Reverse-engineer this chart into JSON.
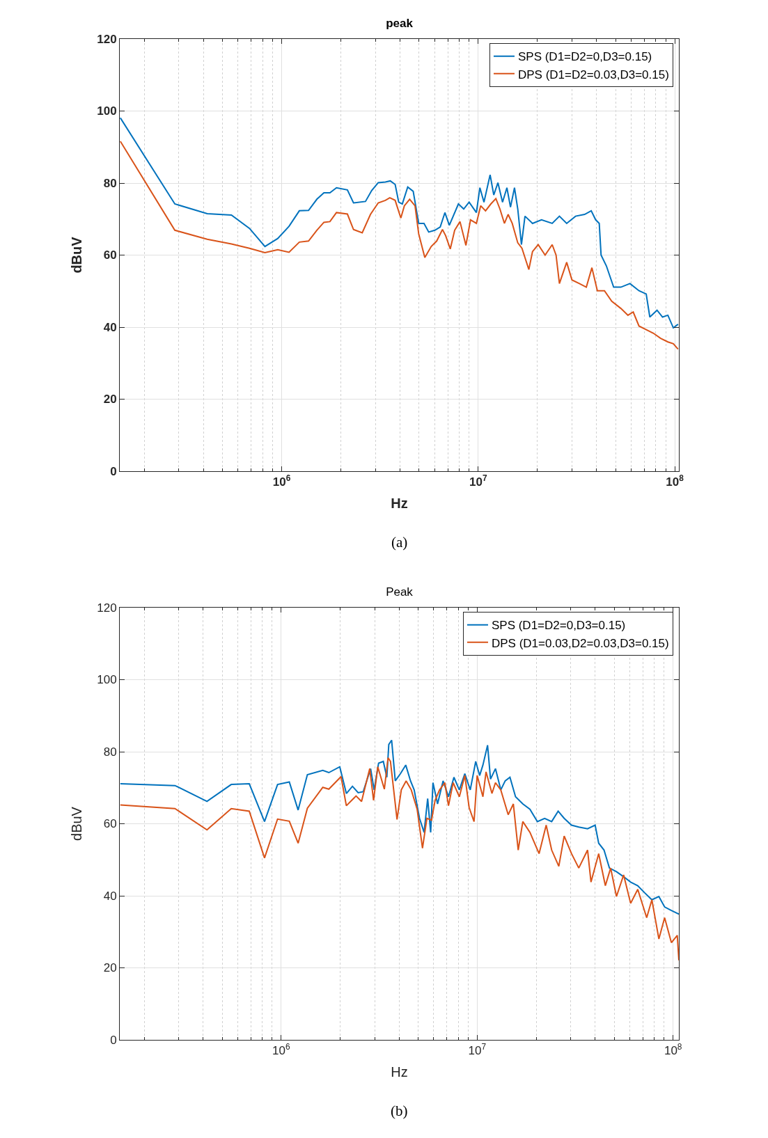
{
  "chart_data": [
    {
      "type": "line",
      "title": "peak",
      "xlabel": "Hz",
      "ylabel": "dBuV",
      "annotations": [
        "(a)"
      ],
      "log": "x",
      "grid": true,
      "legend": "top right",
      "xlim": [
        150000,
        105000000
      ],
      "xticks": [
        {
          "value": 1000000,
          "label": "10$^{6}$"
        },
        {
          "value": 10000000,
          "label": "10$^{7}$"
        },
        {
          "value": 100000000,
          "label": "10$^{8}$"
        }
      ],
      "ylim": [
        0,
        120
      ],
      "yticks": [
        0,
        20,
        40,
        60,
        80,
        100,
        120
      ],
      "series": [
        {
          "name": "SPS (D1=D2=0,D3=0.15)",
          "color": "#0072bd",
          "x": [
            151000,
            286000,
            418000,
            555000,
            686000,
            822000,
            955000,
            1090000,
            1230000,
            1370000,
            1510000,
            1640000,
            1760000,
            1900000,
            2160000,
            2320000,
            2670000,
            2870000,
            3100000,
            3370000,
            3570000,
            3780000,
            3940000,
            4110000,
            4380000,
            4670000,
            4980000,
            5300000,
            5600000,
            6020000,
            6410000,
            6770000,
            7130000,
            7930000,
            8440000,
            8990000,
            9790000,
            10200000,
            10700000,
            11500000,
            12000000,
            12600000,
            13300000,
            14000000,
            14600000,
            15300000,
            15900000,
            16600000,
            17300000,
            18900000,
            21000000,
            23800000,
            25900000,
            28200000,
            31300000,
            34800000,
            37600000,
            39600000,
            41300000,
            42200000,
            44900000,
            48900000,
            53200000,
            59200000,
            65800000,
            71600000,
            74700000,
            81300000,
            86700000,
            92300000,
            98400000,
            104000000
          ],
          "values": [
            98.1,
            74.2,
            71.5,
            71.1,
            67.4,
            62.4,
            64.6,
            68.0,
            72.3,
            72.4,
            75.5,
            77.3,
            77.3,
            78.7,
            78.1,
            74.5,
            74.9,
            77.9,
            80.1,
            80.3,
            80.6,
            79.6,
            74.7,
            74.2,
            78.9,
            77.7,
            68.8,
            68.8,
            66.4,
            66.9,
            67.8,
            71.8,
            68.3,
            74.2,
            72.8,
            74.7,
            71.8,
            78.7,
            74.7,
            82.3,
            76.7,
            80.1,
            74.7,
            78.7,
            73.3,
            78.7,
            72.8,
            62.9,
            70.8,
            68.8,
            69.8,
            68.8,
            70.8,
            68.8,
            70.8,
            71.3,
            72.3,
            69.8,
            68.8,
            60.0,
            57.0,
            51.1,
            51.1,
            52.1,
            50.1,
            49.2,
            42.8,
            44.7,
            42.8,
            43.3,
            39.8,
            40.8
          ]
        },
        {
          "name": "DPS (D1=D2=0.03,D3=0.15)",
          "color": "#d95319",
          "x": [
            151000,
            286000,
            418000,
            555000,
            686000,
            822000,
            955000,
            1090000,
            1230000,
            1370000,
            1510000,
            1640000,
            1760000,
            1900000,
            2160000,
            2320000,
            2570000,
            2830000,
            3100000,
            3370000,
            3550000,
            3780000,
            4040000,
            4210000,
            4480000,
            4770000,
            4980000,
            5350000,
            5770000,
            6150000,
            6580000,
            6830000,
            7210000,
            7590000,
            8080000,
            8660000,
            9140000,
            9790000,
            10300000,
            10900000,
            11600000,
            12300000,
            12900000,
            13600000,
            14200000,
            14900000,
            15900000,
            16700000,
            18100000,
            18900000,
            20200000,
            21900000,
            23800000,
            24900000,
            25900000,
            28200000,
            30000000,
            32700000,
            35500000,
            37900000,
            40400000,
            43900000,
            47800000,
            53200000,
            57800000,
            61500000,
            65800000,
            71600000,
            77900000,
            84800000,
            92300000,
            98400000,
            104000000
          ],
          "values": [
            91.6,
            66.9,
            64.4,
            63.1,
            61.9,
            60.7,
            61.5,
            60.8,
            63.6,
            63.9,
            66.9,
            69.1,
            69.3,
            71.8,
            71.4,
            67.1,
            66.2,
            71.3,
            74.5,
            75.2,
            75.9,
            75.2,
            70.3,
            73.7,
            75.5,
            73.7,
            65.9,
            59.3,
            62.4,
            63.9,
            67.1,
            65.4,
            61.7,
            66.9,
            69.3,
            62.7,
            69.8,
            68.8,
            73.7,
            72.3,
            74.2,
            75.7,
            72.8,
            68.8,
            71.3,
            68.8,
            63.4,
            61.9,
            56.0,
            61.0,
            62.9,
            60.0,
            62.9,
            60.0,
            52.1,
            58.0,
            53.1,
            52.1,
            51.1,
            56.5,
            50.1,
            50.1,
            47.2,
            45.2,
            43.3,
            44.2,
            40.3,
            39.3,
            38.3,
            36.9,
            35.9,
            35.4,
            33.9
          ]
        }
      ]
    },
    {
      "type": "line",
      "title": "Peak",
      "xlabel": "Hz",
      "ylabel": "dBuV",
      "annotations": [
        "(b)"
      ],
      "log": "x",
      "grid": true,
      "legend": "top right",
      "xlim": [
        150000,
        107000000
      ],
      "xticks": [
        {
          "value": 1000000,
          "label": "10$^{6}$"
        },
        {
          "value": 10000000,
          "label": "10$^{7}$"
        },
        {
          "value": 100000000,
          "label": "10$^{8}$"
        }
      ],
      "ylim": [
        0,
        120
      ],
      "yticks": [
        0,
        20,
        40,
        60,
        80,
        100,
        120
      ],
      "series": [
        {
          "name": "SPS (D1=D2=0,D3=0.15)",
          "color": "#0072bd",
          "x": [
            151000,
            287000,
            418000,
            556000,
            687000,
            822000,
            958000,
            1100000,
            1220000,
            1360000,
            1630000,
            1750000,
            1990000,
            2150000,
            2310000,
            2470000,
            2620000,
            2860000,
            2980000,
            3140000,
            3320000,
            3460000,
            3540000,
            3660000,
            3820000,
            4060000,
            4320000,
            4570000,
            4770000,
            5080000,
            5360000,
            5590000,
            5790000,
            5950000,
            6280000,
            6700000,
            7140000,
            7610000,
            8110000,
            8650000,
            9220000,
            9830000,
            10300000,
            10700000,
            11300000,
            11700000,
            12400000,
            13200000,
            13900000,
            14700000,
            15700000,
            17100000,
            18600000,
            20300000,
            22100000,
            24000000,
            25900000,
            27800000,
            30300000,
            33000000,
            36600000,
            40000000,
            41700000,
            44400000,
            47300000,
            51400000,
            55900000,
            60700000,
            66000000,
            71700000,
            77900000,
            84600000,
            90500000,
            98000000,
            107000000
          ],
          "values": [
            71.1,
            70.6,
            66.2,
            70.9,
            71.1,
            60.6,
            70.9,
            71.6,
            63.8,
            73.6,
            74.8,
            74.2,
            75.8,
            68.4,
            70.4,
            68.6,
            68.9,
            75.3,
            69.4,
            76.8,
            77.3,
            72.9,
            82.0,
            83.2,
            71.9,
            73.9,
            76.3,
            71.9,
            69.4,
            61.5,
            57.6,
            67.0,
            57.6,
            71.4,
            65.5,
            71.9,
            67.5,
            72.9,
            69.4,
            73.9,
            69.4,
            77.3,
            73.4,
            76.3,
            81.8,
            72.4,
            75.3,
            69.4,
            71.9,
            72.9,
            67.5,
            65.5,
            64.0,
            60.6,
            61.5,
            60.6,
            63.5,
            61.5,
            59.6,
            59.1,
            58.6,
            59.6,
            54.6,
            52.7,
            47.7,
            46.7,
            45.3,
            43.8,
            42.8,
            40.8,
            38.9,
            39.8,
            36.9,
            35.9,
            34.9
          ]
        },
        {
          "name": "DPS (D1=0.03,D2=0.03,D3=0.15)",
          "color": "#d95319",
          "x": [
            151000,
            287000,
            418000,
            556000,
            687000,
            822000,
            958000,
            1100000,
            1220000,
            1360000,
            1630000,
            1750000,
            2020000,
            2150000,
            2310000,
            2410000,
            2570000,
            2830000,
            2960000,
            3110000,
            3360000,
            3510000,
            3610000,
            3900000,
            4100000,
            4340000,
            4610000,
            4940000,
            5260000,
            5540000,
            5850000,
            6100000,
            6430000,
            6840000,
            7140000,
            7540000,
            8110000,
            8650000,
            9100000,
            9640000,
            10000000,
            10700000,
            11100000,
            11900000,
            12400000,
            13200000,
            14400000,
            15300000,
            16200000,
            17100000,
            18600000,
            20700000,
            22500000,
            24000000,
            26100000,
            27800000,
            30300000,
            33000000,
            36600000,
            38100000,
            41700000,
            45100000,
            48000000,
            51400000,
            55900000,
            60700000,
            66000000,
            73300000,
            77900000,
            84600000,
            90500000,
            98000000,
            105000000,
            107000000
          ],
          "values": [
            65.2,
            64.2,
            58.3,
            64.2,
            63.5,
            50.5,
            61.3,
            60.7,
            54.6,
            64.3,
            70.1,
            69.6,
            73.1,
            65.0,
            66.7,
            67.7,
            66.2,
            75.3,
            66.5,
            75.8,
            69.6,
            78.3,
            77.3,
            61.2,
            69.4,
            71.9,
            69.4,
            64.0,
            53.2,
            61.5,
            61.0,
            66.5,
            69.4,
            71.4,
            65.0,
            71.4,
            67.5,
            73.4,
            64.5,
            60.6,
            73.4,
            67.5,
            74.4,
            68.4,
            71.4,
            69.4,
            62.5,
            65.5,
            52.7,
            60.6,
            57.6,
            51.7,
            59.6,
            52.7,
            48.2,
            56.6,
            51.7,
            47.7,
            52.7,
            43.8,
            51.7,
            42.8,
            47.7,
            39.8,
            45.8,
            37.9,
            41.8,
            33.9,
            38.9,
            28.0,
            33.9,
            27.0,
            29.0,
            22.1
          ]
        }
      ]
    }
  ]
}
